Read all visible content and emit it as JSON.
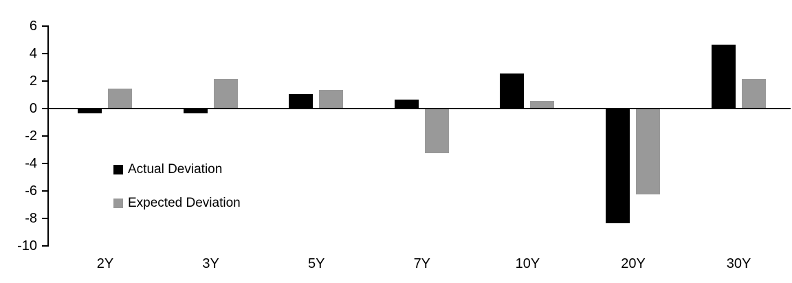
{
  "chart_data": {
    "type": "bar",
    "title": "",
    "xlabel": "",
    "ylabel": "",
    "categories": [
      "2Y",
      "3Y",
      "5Y",
      "7Y",
      "10Y",
      "20Y",
      "30Y"
    ],
    "series": [
      {
        "name": "Actual Deviation",
        "color": "#000000",
        "values": [
          -0.3,
          -0.3,
          1.0,
          0.6,
          2.5,
          -8.3,
          4.6
        ]
      },
      {
        "name": "Expected Deviation",
        "color": "#999999",
        "values": [
          1.4,
          2.1,
          1.3,
          -3.2,
          0.5,
          -6.2,
          2.1
        ]
      }
    ],
    "ylim": [
      -10,
      6
    ],
    "yticks": [
      6,
      4,
      2,
      0,
      -2,
      -4,
      -6,
      -8,
      -10
    ],
    "grid": false,
    "legend_position": "inside-left",
    "axis_color": "#000000"
  }
}
